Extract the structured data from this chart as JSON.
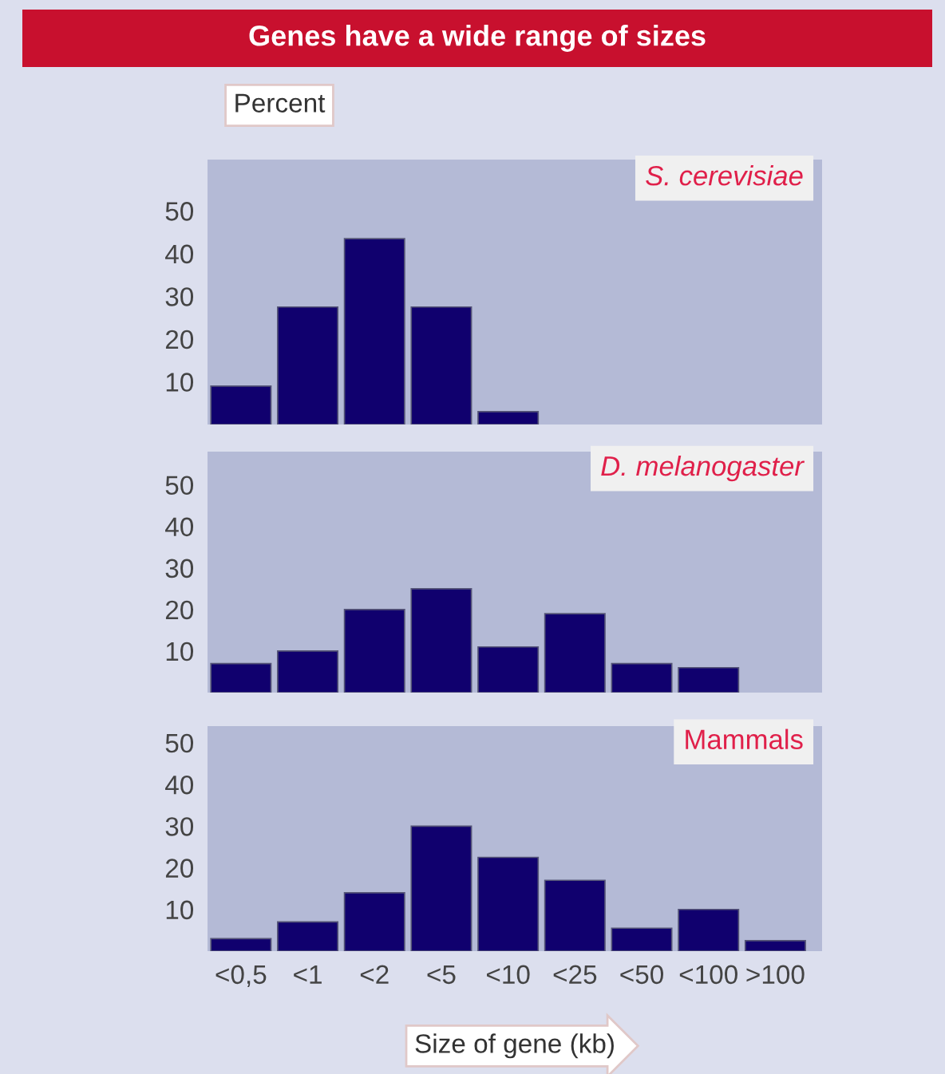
{
  "chart_data": [
    {
      "type": "bar",
      "title": "Genes have a wide range of sizes",
      "subtitle": "S. cerevisiae",
      "ylabel": "Percent",
      "categories": [
        null,
        null,
        null,
        null,
        null,
        null,
        null,
        null,
        null
      ],
      "values": [
        9,
        27.5,
        43.5,
        27.5,
        3,
        null,
        null,
        null,
        null
      ],
      "color": "#10006e",
      "ylim": [
        0,
        62
      ],
      "yticks": [
        10,
        20,
        30,
        40,
        50
      ],
      "grid": false,
      "legend": false
    },
    {
      "type": "bar",
      "subtitle": "D. melanogaster",
      "categories": [
        null,
        null,
        null,
        null,
        null,
        null,
        null,
        null,
        null
      ],
      "values": [
        7,
        10,
        20,
        25,
        11,
        19,
        7,
        6,
        null
      ],
      "color": "#10006e",
      "ylim": [
        0,
        58
      ],
      "yticks": [
        10,
        20,
        30,
        40,
        50
      ],
      "grid": false,
      "legend": false
    },
    {
      "type": "bar",
      "subtitle": "Mammals",
      "xlabel": "Size of gene (kb)",
      "categories": [
        "<0,5",
        "<1",
        "<2",
        "<5",
        "<10",
        "<25",
        "<50",
        "<100",
        ">100"
      ],
      "values": [
        3,
        7,
        14,
        30,
        22.5,
        17,
        5.5,
        10,
        2.5
      ],
      "color": "#10006e",
      "ylim": [
        0,
        54
      ],
      "yticks": [
        10,
        20,
        30,
        40,
        50
      ],
      "grid": false,
      "legend": false
    }
  ]
}
